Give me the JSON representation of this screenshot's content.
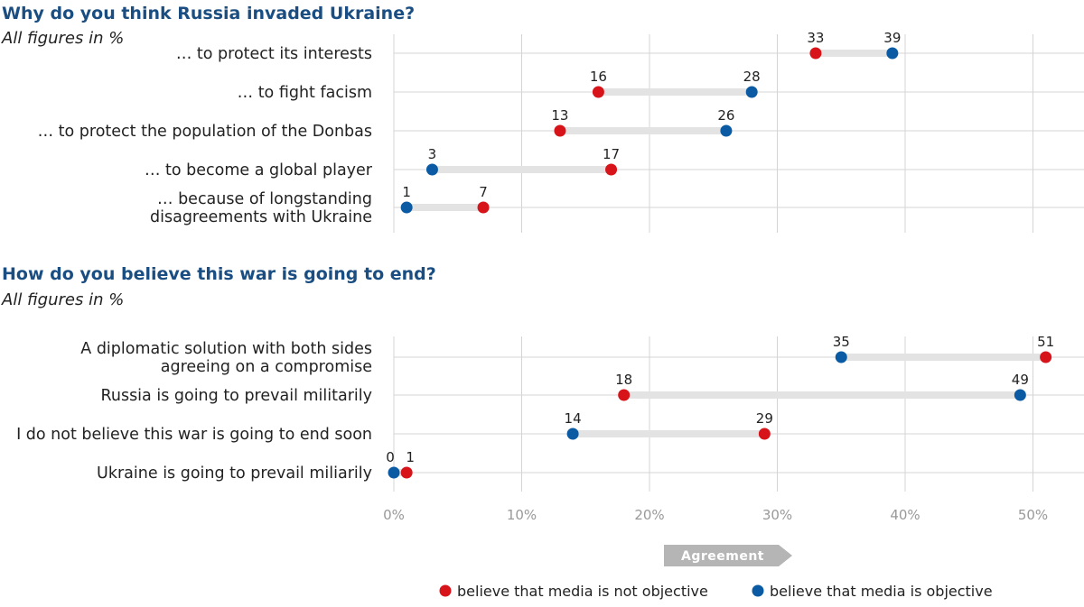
{
  "colors": {
    "not_objective": "#d7141a",
    "objective": "#0b5ba4",
    "connector": "#e3e3e3",
    "grid": "#d4d4d4",
    "arrow": "#b5b5b5",
    "title": "#1a4e82"
  },
  "chart_data": [
    {
      "type": "dumbbell",
      "title": "Why do you think Russia invaded Ukraine?",
      "subtitle": "All figures in %",
      "categories": [
        [
          "… to protect its interests"
        ],
        [
          "… to fight facism"
        ],
        [
          "… to protect the population of the Donbas"
        ],
        [
          "… to become a global player"
        ],
        [
          "… because of longstanding",
          "disagreements with Ukraine"
        ]
      ],
      "series": [
        {
          "name": "believe that media is not objective",
          "values": [
            33,
            16,
            13,
            17,
            7
          ]
        },
        {
          "name": "believe that media is objective",
          "values": [
            39,
            28,
            26,
            3,
            1
          ]
        }
      ],
      "xlim": [
        0,
        54
      ],
      "grid": true
    },
    {
      "type": "dumbbell",
      "title": "How do you believe this war is going to end?",
      "subtitle": "All figures in %",
      "categories": [
        [
          "A diplomatic solution with both sides",
          "agreeing on a compromise"
        ],
        [
          "Russia is going to prevail militarily"
        ],
        [
          "I do not believe this war is going to end soon"
        ],
        [
          "Ukraine is going to prevail miliarily"
        ]
      ],
      "series": [
        {
          "name": "believe that media is not objective",
          "values": [
            51,
            18,
            29,
            1
          ]
        },
        {
          "name": "believe that media is objective",
          "values": [
            35,
            49,
            14,
            0
          ]
        }
      ],
      "xlim": [
        0,
        54
      ],
      "x_ticks": [
        "0%",
        "10%",
        "20%",
        "30%",
        "40%",
        "50%"
      ],
      "x_tick_values": [
        0,
        10,
        20,
        30,
        40,
        50
      ],
      "grid": true
    }
  ],
  "axis_arrow_label": "Agreement",
  "legend": [
    {
      "label": "believe that media is not objective",
      "color": "#d7141a"
    },
    {
      "label": "believe that media is objective",
      "color": "#0b5ba4"
    }
  ]
}
